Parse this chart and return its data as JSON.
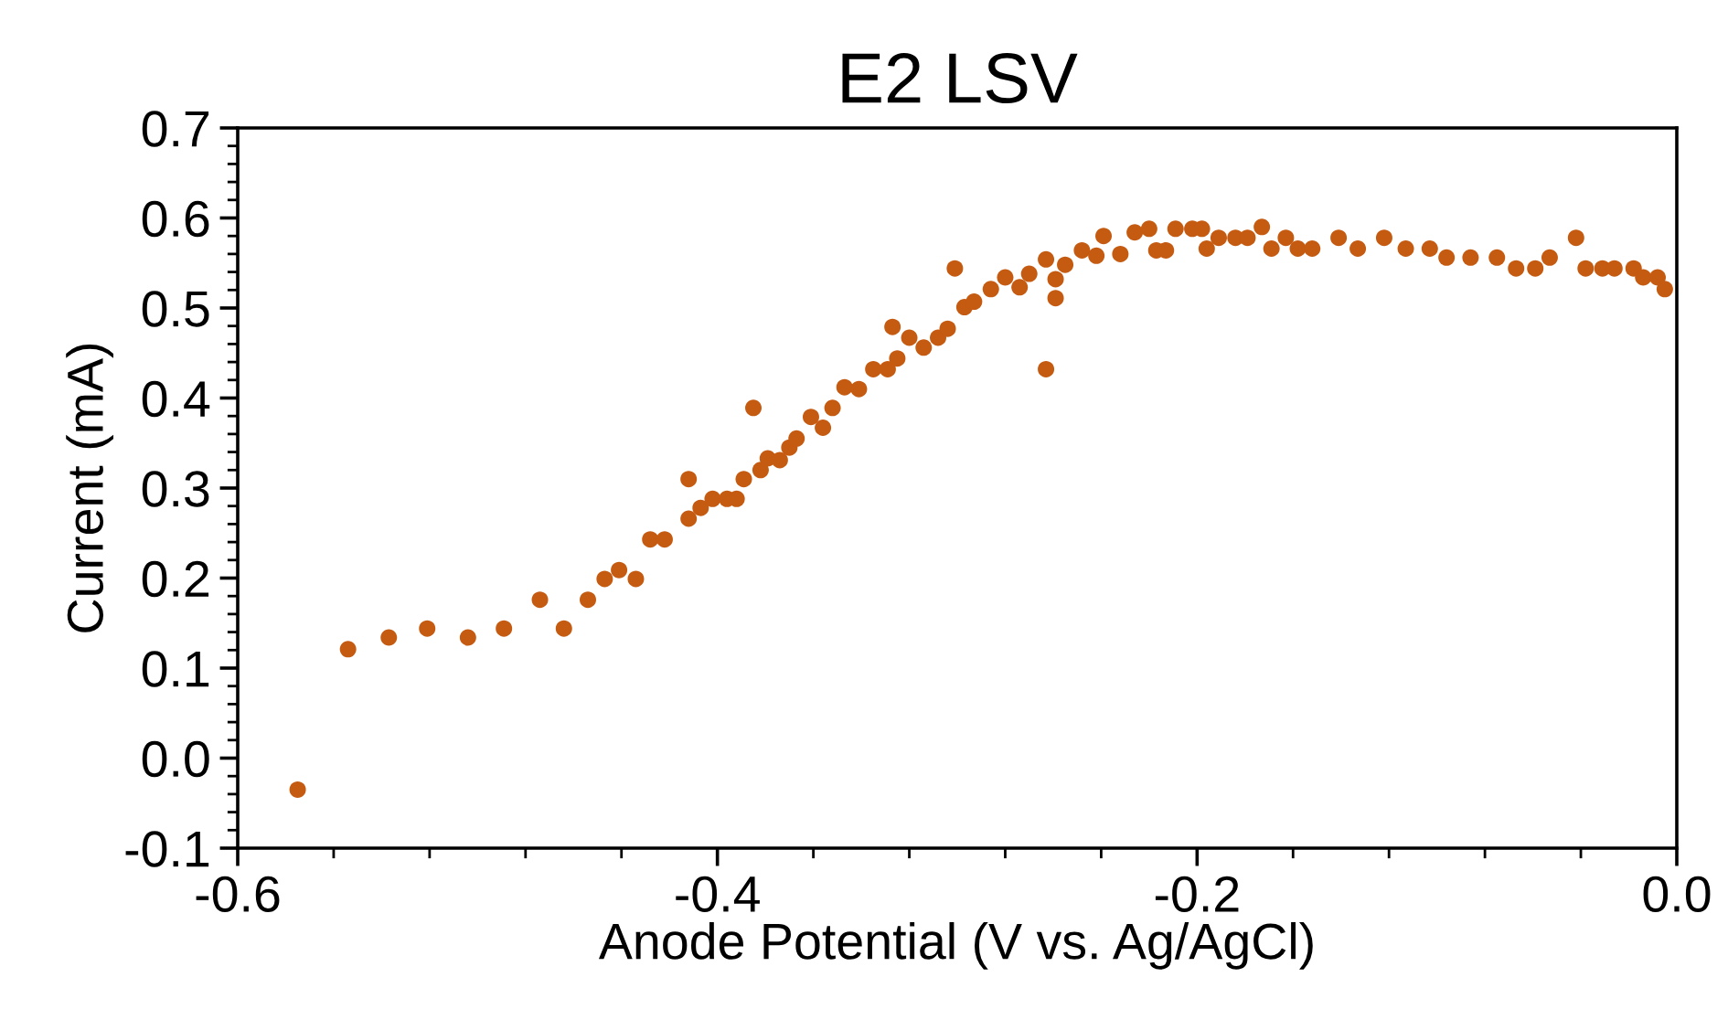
{
  "chart_data": {
    "type": "scatter",
    "title": "E2 LSV",
    "xlabel": "Anode Potential (V vs. Ag/AgCl)",
    "ylabel": "Current (mA)",
    "xlim": [
      -0.6,
      0.0
    ],
    "ylim": [
      -0.1,
      0.7
    ],
    "xticks": [
      -0.6,
      {
        "value": -0.56,
        "label": null
      },
      {
        "value": -0.52,
        "label": null
      },
      {
        "value": -0.48,
        "label": null
      },
      {
        "value": -0.44,
        "label": null
      },
      -0.4,
      {
        "value": -0.36,
        "label": null
      },
      {
        "value": -0.32,
        "label": null
      },
      {
        "value": -0.28,
        "label": null
      },
      {
        "value": -0.24,
        "label": null
      },
      -0.2,
      {
        "value": -0.16,
        "label": null
      },
      {
        "value": -0.12,
        "label": null
      },
      {
        "value": -0.08,
        "label": null
      },
      {
        "value": -0.04,
        "label": null
      },
      {
        "value": 0,
        "label": "0.0"
      }
    ],
    "yticks": [
      -0.1,
      {
        "value": -0.08,
        "label": null
      },
      {
        "value": -0.06,
        "label": null
      },
      {
        "value": -0.04,
        "label": null
      },
      {
        "value": -0.02,
        "label": null
      },
      {
        "value": 0,
        "label": "0.0"
      },
      {
        "value": 0.02,
        "label": null
      },
      {
        "value": 0.04,
        "label": null
      },
      {
        "value": 0.06,
        "label": null
      },
      {
        "value": 0.08,
        "label": null
      },
      0.1,
      {
        "value": 0.12,
        "label": null
      },
      {
        "value": 0.14,
        "label": null
      },
      {
        "value": 0.16,
        "label": null
      },
      {
        "value": 0.18,
        "label": null
      },
      0.2,
      {
        "value": 0.22,
        "label": null
      },
      {
        "value": 0.24,
        "label": null
      },
      {
        "value": 0.26,
        "label": null
      },
      {
        "value": 0.28,
        "label": null
      },
      0.3,
      {
        "value": 0.32,
        "label": null
      },
      {
        "value": 0.34,
        "label": null
      },
      {
        "value": 0.36,
        "label": null
      },
      {
        "value": 0.38,
        "label": null
      },
      0.4,
      {
        "value": 0.42,
        "label": null
      },
      {
        "value": 0.44,
        "label": null
      },
      {
        "value": 0.46,
        "label": null
      },
      {
        "value": 0.48,
        "label": null
      },
      0.5,
      {
        "value": 0.52,
        "label": null
      },
      {
        "value": 0.54,
        "label": null
      },
      {
        "value": 0.56,
        "label": null
      },
      {
        "value": 0.58,
        "label": null
      },
      0.6,
      {
        "value": 0.62,
        "label": null
      },
      {
        "value": 0.64,
        "label": null
      },
      {
        "value": 0.66,
        "label": null
      },
      {
        "value": 0.68,
        "label": null
      },
      0.7
    ],
    "marker": "circle",
    "grid": false,
    "series": [
      {
        "color": "#c55a11",
        "x": [
          -0.575,
          -0.554,
          -0.537,
          -0.521,
          -0.504,
          -0.489,
          -0.474,
          -0.464,
          -0.454,
          -0.447,
          -0.441,
          -0.434,
          -0.428,
          -0.422,
          -0.412,
          -0.412,
          -0.407,
          -0.402,
          -0.396,
          -0.392,
          -0.389,
          -0.385,
          -0.382,
          -0.379,
          -0.374,
          -0.37,
          -0.367,
          -0.361,
          -0.356,
          -0.352,
          -0.347,
          -0.341,
          -0.335,
          -0.329,
          -0.325,
          -0.327,
          -0.32,
          -0.314,
          -0.308,
          -0.304,
          -0.301,
          -0.297,
          -0.293,
          -0.286,
          -0.28,
          -0.274,
          -0.27,
          -0.263,
          -0.259,
          -0.259,
          -0.263,
          -0.255,
          -0.248,
          -0.242,
          -0.239,
          -0.232,
          -0.226,
          -0.22,
          -0.217,
          -0.213,
          -0.209,
          -0.202,
          -0.198,
          -0.196,
          -0.191,
          -0.184,
          -0.179,
          -0.173,
          -0.169,
          -0.163,
          -0.158,
          -0.152,
          -0.141,
          -0.133,
          -0.122,
          -0.113,
          -0.103,
          -0.096,
          -0.086,
          -0.075,
          -0.067,
          -0.059,
          -0.053,
          -0.042,
          -0.038,
          -0.031,
          -0.026,
          -0.018,
          -0.014,
          -0.008,
          -0.005
        ],
        "values": [
          -0.035,
          0.121,
          0.134,
          0.144,
          0.134,
          0.144,
          0.176,
          0.144,
          0.176,
          0.199,
          0.209,
          0.199,
          0.243,
          0.243,
          0.266,
          0.31,
          0.278,
          0.288,
          0.288,
          0.288,
          0.31,
          0.389,
          0.32,
          0.333,
          0.331,
          0.345,
          0.355,
          0.379,
          0.367,
          0.389,
          0.412,
          0.41,
          0.432,
          0.432,
          0.444,
          0.479,
          0.467,
          0.456,
          0.467,
          0.477,
          0.544,
          0.501,
          0.507,
          0.521,
          0.534,
          0.523,
          0.538,
          0.554,
          0.532,
          0.511,
          0.432,
          0.548,
          0.564,
          0.558,
          0.58,
          0.56,
          0.584,
          0.588,
          0.564,
          0.564,
          0.588,
          0.588,
          0.588,
          0.566,
          0.578,
          0.578,
          0.578,
          0.59,
          0.566,
          0.578,
          0.566,
          0.566,
          0.578,
          0.566,
          0.578,
          0.566,
          0.566,
          0.556,
          0.556,
          0.556,
          0.544,
          0.544,
          0.556,
          0.578,
          0.544,
          0.544,
          0.544,
          0.544,
          0.534,
          0.534,
          0.521
        ]
      }
    ]
  }
}
